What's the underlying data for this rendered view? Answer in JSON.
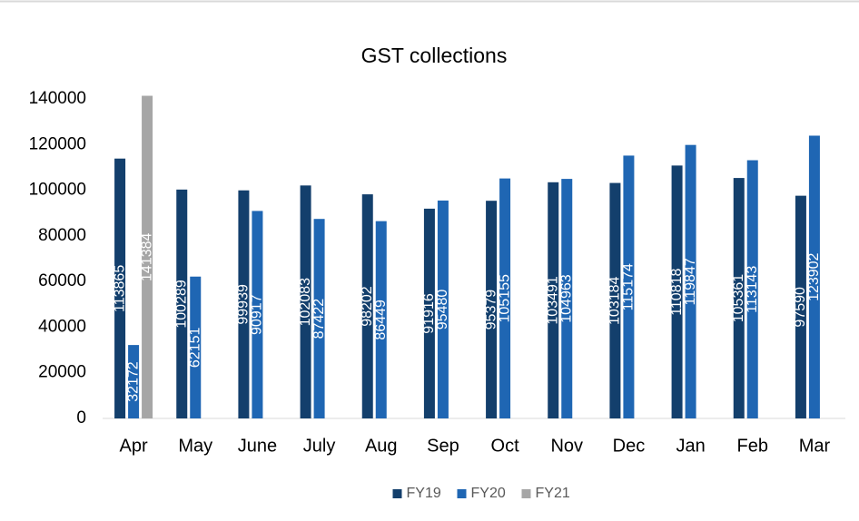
{
  "chart_data": {
    "type": "bar",
    "title": "GST collections",
    "categories": [
      "Apr",
      "May",
      "June",
      "July",
      "Aug",
      "Sep",
      "Oct",
      "Nov",
      "Dec",
      "Jan",
      "Feb",
      "Mar"
    ],
    "series": [
      {
        "name": "FY19",
        "color": "#133f6c",
        "values": [
          113865,
          100289,
          99939,
          102083,
          98202,
          91916,
          95379,
          103491,
          103184,
          110818,
          105361,
          97590
        ]
      },
      {
        "name": "FY20",
        "color": "#1f66b3",
        "values": [
          32172,
          62151,
          90917,
          87422,
          86449,
          95480,
          105155,
          104963,
          115174,
          119847,
          113143,
          123902
        ]
      },
      {
        "name": "FY21",
        "color": "#a6a6a6",
        "values": [
          141384,
          null,
          null,
          null,
          null,
          null,
          null,
          null,
          null,
          null,
          null,
          null
        ]
      }
    ],
    "ylim": [
      0,
      140000
    ],
    "yticks": [
      0,
      20000,
      40000,
      60000,
      80000,
      100000,
      120000,
      140000
    ],
    "grid": false,
    "legend": "bottom"
  }
}
